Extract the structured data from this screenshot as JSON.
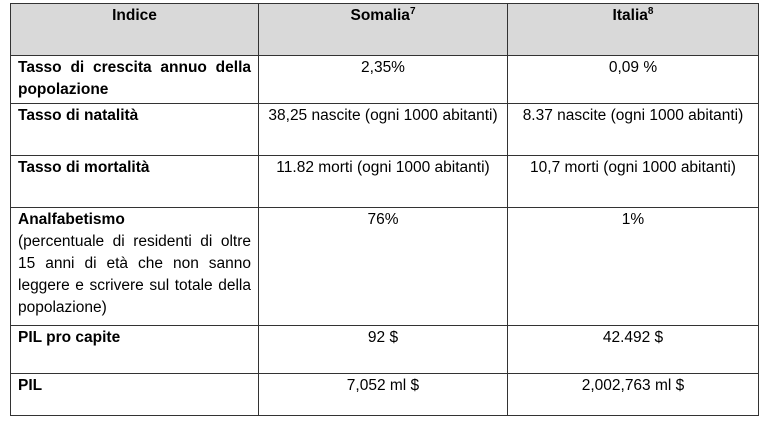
{
  "table": {
    "header": [
      {
        "text": "Indice"
      },
      {
        "text": "Somalia",
        "sup": "7"
      },
      {
        "text": "Italia",
        "sup": "8"
      }
    ],
    "rows": [
      [
        "Tasso di crescita annuo della popolazione",
        "2,35%",
        "0,09 %"
      ],
      [
        "Tasso di natalità",
        "38,25 nascite (ogni 1000 abitanti)",
        "8.37 nascite (ogni 1000 abitanti)"
      ],
      [
        "Tasso di mortalità",
        "11.82 morti (ogni 1000 abitanti)",
        "10,7 morti (ogni 1000 abitanti)"
      ],
      [
        {
          "text": "Analfabetismo",
          "note": "(percentuale di residenti di oltre 15 anni di età che non sanno leggere e scrivere sul totale della popolazione)"
        },
        "76%",
        "1%"
      ],
      [
        "PIL pro capite",
        "92 $",
        "42.492 $"
      ],
      [
        "PIL",
        "7,052 ml $",
        "2,002,763 ml $"
      ]
    ]
  }
}
